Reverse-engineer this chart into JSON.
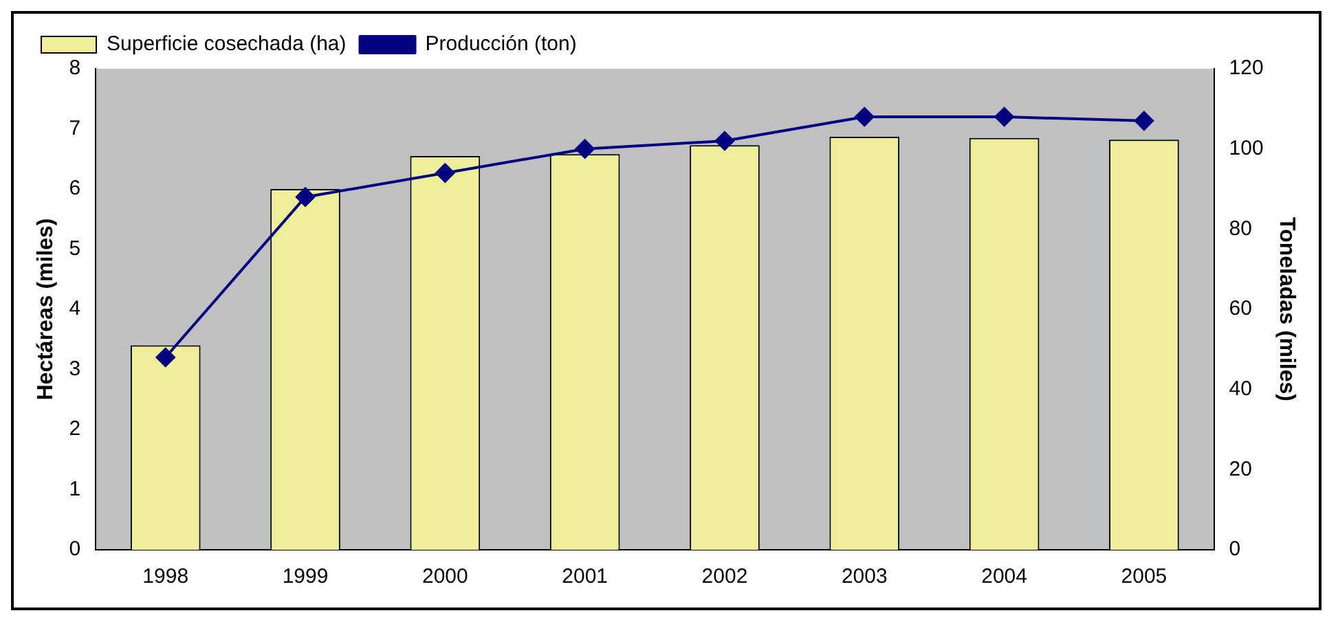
{
  "chart_data": {
    "type": "bar",
    "categories": [
      "1998",
      "1999",
      "2000",
      "2001",
      "2002",
      "2003",
      "2004",
      "2005"
    ],
    "ylabel": "Hectáreas (miles)",
    "y2label": "Toneladas (miles)",
    "ylim": [
      0,
      8
    ],
    "yticks": [
      0,
      1,
      2,
      3,
      4,
      5,
      6,
      7,
      8
    ],
    "y2lim": [
      0,
      120
    ],
    "y2ticks": [
      0,
      20,
      40,
      60,
      80,
      100,
      120
    ],
    "series": [
      {
        "name": "Superficie cosechada (ha)",
        "color": "#eeee99",
        "values": [
          3.4,
          6.0,
          6.55,
          6.58,
          6.73,
          6.87,
          6.85,
          6.82
        ]
      },
      {
        "name": "Producción (ton)",
        "type": "line",
        "axis": "y2",
        "color": "#000080",
        "marker": "diamond",
        "values": [
          48,
          88,
          94,
          100,
          102,
          108,
          108,
          107
        ]
      }
    ],
    "legend": "top left",
    "grid": false
  }
}
